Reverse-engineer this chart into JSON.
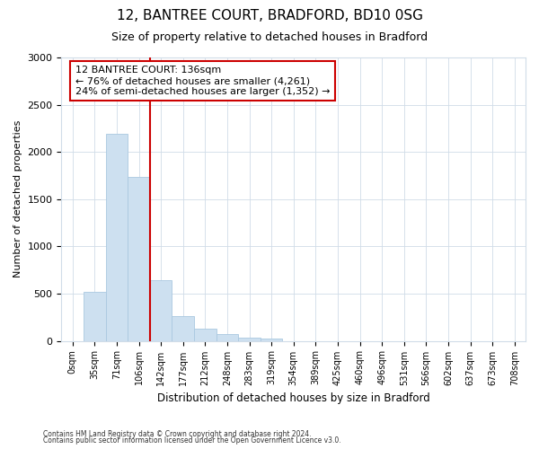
{
  "title_line1": "12, BANTREE COURT, BRADFORD, BD10 0SG",
  "title_line2": "Size of property relative to detached houses in Bradford",
  "xlabel": "Distribution of detached houses by size in Bradford",
  "ylabel": "Number of detached properties",
  "bar_labels": [
    "0sqm",
    "35sqm",
    "71sqm",
    "106sqm",
    "142sqm",
    "177sqm",
    "212sqm",
    "248sqm",
    "283sqm",
    "319sqm",
    "354sqm",
    "389sqm",
    "425sqm",
    "460sqm",
    "496sqm",
    "531sqm",
    "566sqm",
    "602sqm",
    "637sqm",
    "673sqm",
    "708sqm"
  ],
  "bar_values": [
    0,
    520,
    2190,
    1740,
    640,
    265,
    130,
    75,
    30,
    20,
    0,
    0,
    0,
    0,
    0,
    0,
    0,
    0,
    0,
    0,
    0
  ],
  "bar_color": "#cde0f0",
  "bar_edge_color": "#aac8e0",
  "vline_color": "#cc0000",
  "vline_pos": 4,
  "annotation_text": "12 BANTREE COURT: 136sqm\n← 76% of detached houses are smaller (4,261)\n24% of semi-detached houses are larger (1,352) →",
  "annotation_box_facecolor": "#ffffff",
  "annotation_box_edgecolor": "#cc0000",
  "ylim": [
    0,
    3000
  ],
  "yticks": [
    0,
    500,
    1000,
    1500,
    2000,
    2500,
    3000
  ],
  "fig_bg_color": "#ffffff",
  "plot_bg_color": "#ffffff",
  "grid_color": "#d0dce8",
  "footnote1": "Contains HM Land Registry data © Crown copyright and database right 2024.",
  "footnote2": "Contains public sector information licensed under the Open Government Licence v3.0.",
  "title1_fontsize": 11,
  "title2_fontsize": 9
}
